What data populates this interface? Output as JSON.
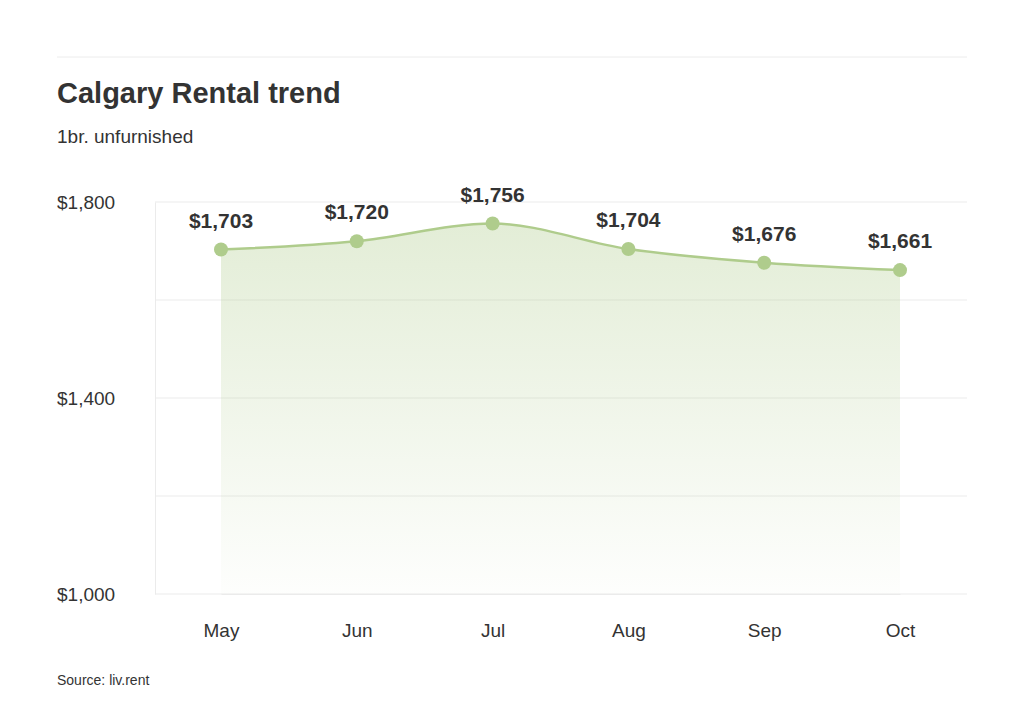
{
  "chart_data": {
    "type": "line",
    "title": "Calgary Rental trend",
    "subtitle": "1br. unfurnished",
    "source": "Source: liv.rent",
    "categories": [
      "May",
      "Jun",
      "Jul",
      "Aug",
      "Sep",
      "Oct"
    ],
    "values": [
      1703,
      1720,
      1756,
      1704,
      1676,
      1661
    ],
    "value_labels": [
      "$1,703",
      "$1,720",
      "$1,756",
      "$1,704",
      "$1,676",
      "$1,661"
    ],
    "color": "#afcc8c",
    "ylim": [
      1000,
      1800
    ],
    "yticks": [
      {
        "value": 1000,
        "label": "$1,000"
      },
      {
        "value": 1200,
        "label": null
      },
      {
        "value": 1400,
        "label": "$1,400"
      },
      {
        "value": 1600,
        "label": null
      },
      {
        "value": 1800,
        "label": "$1,800"
      }
    ],
    "grid": true,
    "data_labels": true,
    "marker": "circle",
    "line_style": "solid"
  }
}
